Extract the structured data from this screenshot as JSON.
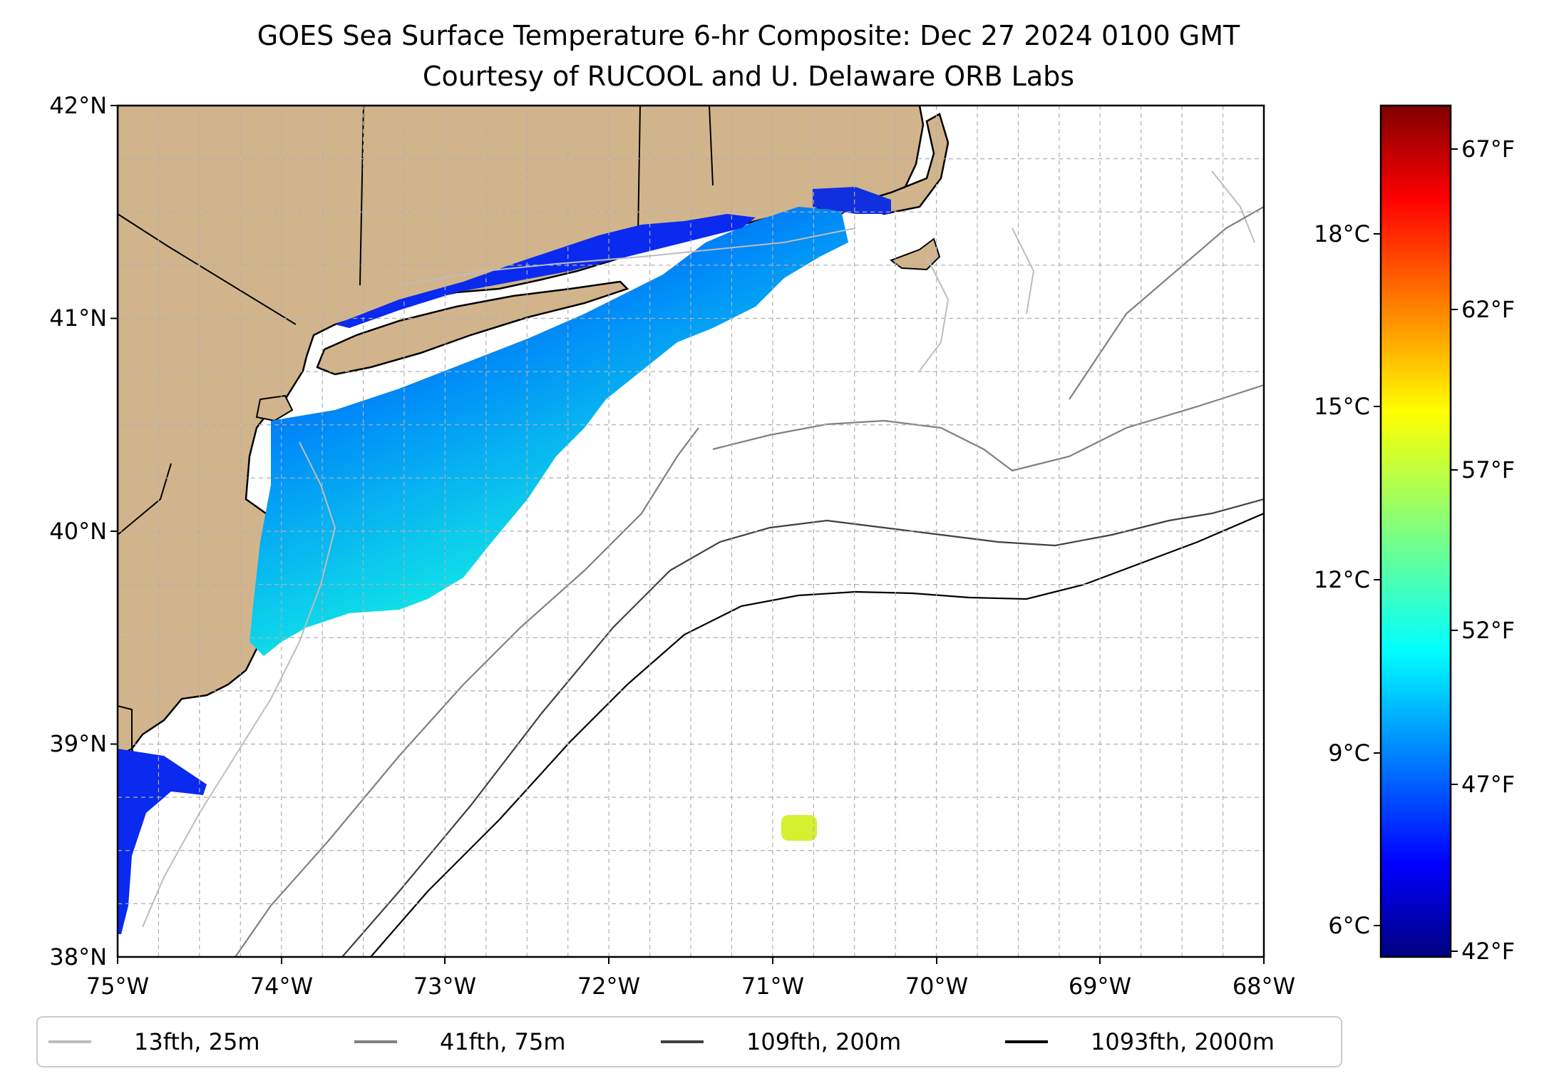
{
  "title": {
    "line1": "GOES Sea Surface Temperature 6-hr Composite: Dec 27 2024 0100 GMT",
    "line2": "Courtesy of RUCOOL and U. Delaware ORB Labs"
  },
  "map": {
    "lon_range": [
      -75,
      -68
    ],
    "lat_range": [
      38,
      42
    ],
    "x_ticks": [
      "75°W",
      "74°W",
      "73°W",
      "72°W",
      "71°W",
      "70°W",
      "69°W",
      "68°W"
    ],
    "y_ticks": [
      "38°N",
      "39°N",
      "40°N",
      "41°N",
      "42°N"
    ],
    "land_color": "#D2B48C",
    "grid": true
  },
  "colorbar": {
    "colormap": "jet",
    "celsius_ticks": [
      "6°C",
      "9°C",
      "12°C",
      "15°C",
      "18°C"
    ],
    "fahrenheit_ticks": [
      "42°F",
      "47°F",
      "52°F",
      "57°F",
      "62°F",
      "67°F"
    ]
  },
  "legend": {
    "items": [
      {
        "label": "13fth, 25m",
        "color": "#BDBDBD"
      },
      {
        "label": "41fth, 75m",
        "color": "#808080"
      },
      {
        "label": "109fth, 200m",
        "color": "#404040"
      },
      {
        "label": "1093fth, 2000m",
        "color": "#000000"
      }
    ]
  }
}
